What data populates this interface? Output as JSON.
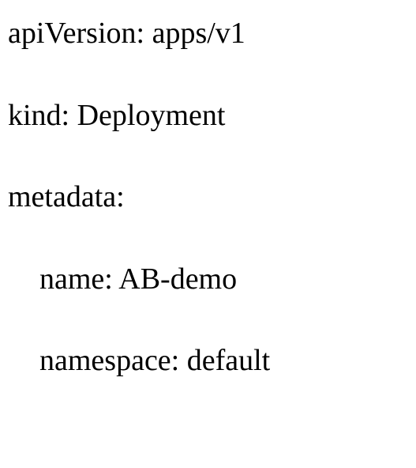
{
  "yaml": {
    "lines": [
      {
        "text": "apiVersion: apps/v1",
        "indent": 0
      },
      {
        "text": "kind: Deployment",
        "indent": 0
      },
      {
        "text": "metadata:",
        "indent": 0
      },
      {
        "text": "name: AB-demo",
        "indent": 1
      },
      {
        "text": "namespace: default",
        "indent": 1
      }
    ],
    "fontFamily": "Times New Roman",
    "fontSize": 38,
    "textColor": "#000000",
    "backgroundColor": "#ffffff",
    "indentPx": 40,
    "lineSpacingPx": 58
  }
}
